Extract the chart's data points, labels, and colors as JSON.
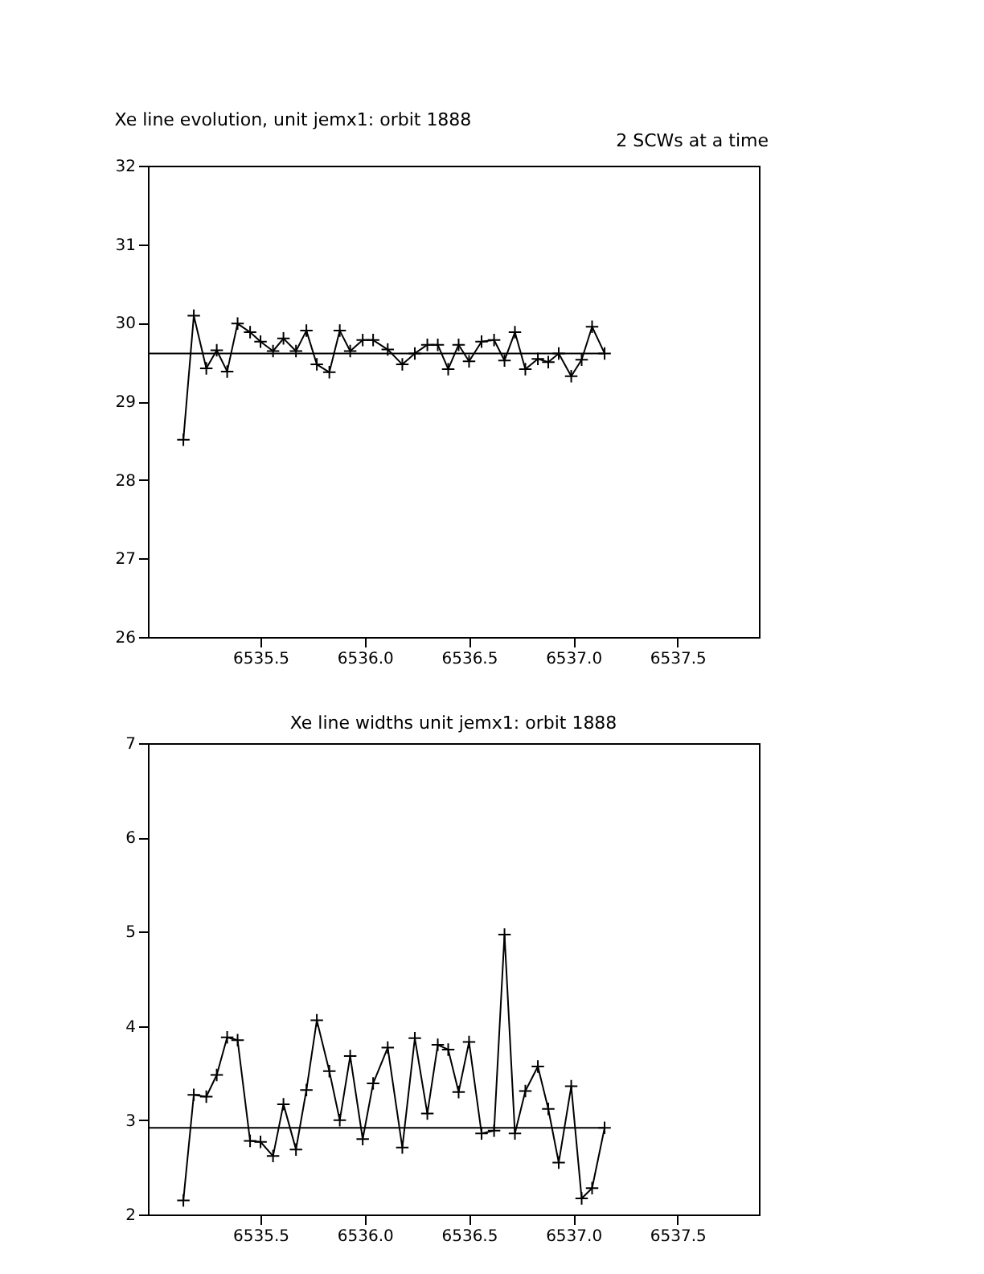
{
  "chart_data": [
    {
      "type": "line",
      "title": "Xe line evolution, unit jemx1: orbit 1888",
      "annotations": [
        "2 SCWs at a time"
      ],
      "x": [
        6535.13,
        6535.18,
        6535.24,
        6535.29,
        6535.34,
        6535.39,
        6535.45,
        6535.5,
        6535.56,
        6535.61,
        6535.67,
        6535.72,
        6535.77,
        6535.83,
        6535.88,
        6535.93,
        6535.99,
        6536.04,
        6536.11,
        6536.18,
        6536.24,
        6536.3,
        6536.35,
        6536.4,
        6536.45,
        6536.5,
        6536.56,
        6536.62,
        6536.67,
        6536.72,
        6536.77,
        6536.83,
        6536.88,
        6536.93,
        6536.99,
        6537.04,
        6537.09,
        6537.15
      ],
      "series": [
        {
          "color": "#000000",
          "values": [
            28.51,
            30.09,
            29.42,
            29.65,
            29.38,
            29.99,
            29.88,
            29.76,
            29.64,
            29.8,
            29.64,
            29.9,
            29.47,
            29.37,
            29.9,
            29.64,
            29.78,
            29.78,
            29.66,
            29.47,
            29.61,
            29.72,
            29.72,
            29.41,
            29.72,
            29.51,
            29.76,
            29.78,
            29.52,
            29.88,
            29.41,
            29.54,
            29.5,
            29.61,
            29.32,
            29.53,
            29.95,
            29.61
          ]
        }
      ],
      "marker": "cross",
      "line_style": "solid",
      "grid": false,
      "xlim": [
        6534.96,
        6537.89
      ],
      "xticks": [
        {
          "value": 6535.5,
          "label": "6535.5"
        },
        {
          "value": 6536.0,
          "label": "6536.0"
        },
        {
          "value": 6536.5,
          "label": "6536.5"
        },
        {
          "value": 6537.0,
          "label": "6537.0"
        },
        {
          "value": 6537.5,
          "label": "6537.5"
        }
      ],
      "ylim": [
        26,
        32
      ],
      "yticks": [
        26,
        27,
        28,
        29,
        30,
        31,
        32
      ],
      "ref_lines": [
        {
          "axis": "y",
          "value": 29.61,
          "color": "#000000"
        }
      ]
    },
    {
      "type": "line",
      "title": "Xe line widths unit jemx1: orbit 1888",
      "x": [
        6535.13,
        6535.18,
        6535.24,
        6535.29,
        6535.34,
        6535.39,
        6535.45,
        6535.5,
        6535.56,
        6535.61,
        6535.67,
        6535.72,
        6535.77,
        6535.83,
        6535.88,
        6535.93,
        6535.99,
        6536.04,
        6536.11,
        6536.18,
        6536.24,
        6536.3,
        6536.35,
        6536.4,
        6536.45,
        6536.5,
        6536.56,
        6536.62,
        6536.67,
        6536.72,
        6536.77,
        6536.83,
        6536.88,
        6536.93,
        6536.99,
        6537.04,
        6537.09,
        6537.15
      ],
      "series": [
        {
          "color": "#000000",
          "values": [
            2.15,
            3.27,
            3.25,
            3.48,
            3.88,
            3.85,
            2.78,
            2.77,
            2.62,
            3.17,
            2.69,
            3.32,
            4.06,
            3.52,
            3.0,
            3.68,
            2.8,
            3.39,
            3.77,
            2.71,
            3.87,
            3.07,
            3.8,
            3.75,
            3.3,
            3.83,
            2.86,
            2.89,
            4.97,
            2.86,
            3.31,
            3.57,
            3.12,
            2.55,
            3.36,
            2.17,
            2.28,
            2.92
          ]
        }
      ],
      "marker": "cross",
      "line_style": "solid",
      "grid": false,
      "xlim": [
        6534.96,
        6537.89
      ],
      "xticks": [
        {
          "value": 6535.5,
          "label": "6535.5"
        },
        {
          "value": 6536.0,
          "label": "6536.0"
        },
        {
          "value": 6536.5,
          "label": "6536.5"
        },
        {
          "value": 6537.0,
          "label": "6537.0"
        },
        {
          "value": 6537.5,
          "label": "6537.5"
        }
      ],
      "ylim": [
        2,
        7
      ],
      "yticks": [
        2,
        3,
        4,
        5,
        6,
        7
      ],
      "ref_lines": [
        {
          "axis": "y",
          "value": 2.92,
          "color": "#000000"
        }
      ]
    }
  ]
}
